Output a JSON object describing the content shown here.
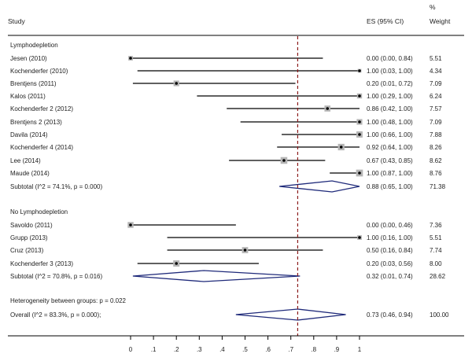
{
  "headers": {
    "study": "Study",
    "es": "ES (95% CI)",
    "pct": "%",
    "weight": "Weight"
  },
  "chart_data": {
    "type": "forest",
    "xlim": [
      0,
      1
    ],
    "xticks": [
      "0",
      ".1",
      ".2",
      ".3",
      ".4",
      ".5",
      ".6",
      ".7",
      ".8",
      ".9",
      "1"
    ],
    "reference_line": 0.73,
    "groups": [
      {
        "name": "Lymphodepletion",
        "studies": [
          {
            "label": "Jesen (2010)",
            "es": 0.0,
            "lo": 0.0,
            "hi": 0.84,
            "ci_text": "0.00 (0.00, 0.84)",
            "weight": "5.51"
          },
          {
            "label": "Kochenderfer (2010)",
            "es": 1.0,
            "lo": 0.03,
            "hi": 1.0,
            "ci_text": "1.00 (0.03, 1.00)",
            "weight": "4.34"
          },
          {
            "label": "Brentjens (2011)",
            "es": 0.2,
            "lo": 0.01,
            "hi": 0.72,
            "ci_text": "0.20 (0.01, 0.72)",
            "weight": "7.09"
          },
          {
            "label": "Kalos (2011)",
            "es": 1.0,
            "lo": 0.29,
            "hi": 1.0,
            "ci_text": "1.00 (0.29, 1.00)",
            "weight": "6.24"
          },
          {
            "label": "Kochenderfer 2 (2012)",
            "es": 0.86,
            "lo": 0.42,
            "hi": 1.0,
            "ci_text": "0.86 (0.42, 1.00)",
            "weight": "7.57"
          },
          {
            "label": "Brentjens 2 (2013)",
            "es": 1.0,
            "lo": 0.48,
            "hi": 1.0,
            "ci_text": "1.00 (0.48, 1.00)",
            "weight": "7.09"
          },
          {
            "label": "Davila (2014)",
            "es": 1.0,
            "lo": 0.66,
            "hi": 1.0,
            "ci_text": "1.00 (0.66, 1.00)",
            "weight": "7.88"
          },
          {
            "label": "Kochenderfer 4 (2014)",
            "es": 0.92,
            "lo": 0.64,
            "hi": 1.0,
            "ci_text": "0.92 (0.64, 1.00)",
            "weight": "8.26"
          },
          {
            "label": "Lee (2014)",
            "es": 0.67,
            "lo": 0.43,
            "hi": 0.85,
            "ci_text": "0.67 (0.43, 0.85)",
            "weight": "8.62"
          },
          {
            "label": "Maude (2014)",
            "es": 1.0,
            "lo": 0.87,
            "hi": 1.0,
            "ci_text": "1.00 (0.87, 1.00)",
            "weight": "8.76"
          }
        ],
        "subtotal": {
          "label": "Subtotal  (I^2 = 74.1%, p = 0.000)",
          "es": 0.88,
          "lo": 0.65,
          "hi": 1.0,
          "ci_text": "0.88 (0.65, 1.00)",
          "weight": "71.38"
        }
      },
      {
        "name": "No Lymphodepletion",
        "studies": [
          {
            "label": "Savoldo (2011)",
            "es": 0.0,
            "lo": 0.0,
            "hi": 0.46,
            "ci_text": "0.00 (0.00, 0.46)",
            "weight": "7.36"
          },
          {
            "label": "Grupp (2013)",
            "es": 1.0,
            "lo": 0.16,
            "hi": 1.0,
            "ci_text": "1.00 (0.16, 1.00)",
            "weight": "5.51"
          },
          {
            "label": "Cruz (2013)",
            "es": 0.5,
            "lo": 0.16,
            "hi": 0.84,
            "ci_text": "0.50 (0.16, 0.84)",
            "weight": "7.74"
          },
          {
            "label": "Kochenderfer 3 (2013)",
            "es": 0.2,
            "lo": 0.03,
            "hi": 0.56,
            "ci_text": "0.20 (0.03, 0.56)",
            "weight": "8.00"
          }
        ],
        "subtotal": {
          "label": "Subtotal  (I^2 = 70.8%, p = 0.016)",
          "es": 0.32,
          "lo": 0.01,
          "hi": 0.74,
          "ci_text": "0.32 (0.01, 0.74)",
          "weight": "28.62"
        }
      }
    ],
    "heterogeneity": "Heterogeneity between groups: p = 0.022",
    "overall": {
      "label": "Overall  (I^2 = 83.3%, p = 0.000);",
      "es": 0.73,
      "lo": 0.46,
      "hi": 0.94,
      "ci_text": "0.73 (0.46, 0.94)",
      "weight": "100.00"
    },
    "colors": {
      "diamond": "#1f2a7a",
      "refline": "#8b1a1a",
      "box": "#b5b5b5",
      "line": "#000000"
    }
  }
}
